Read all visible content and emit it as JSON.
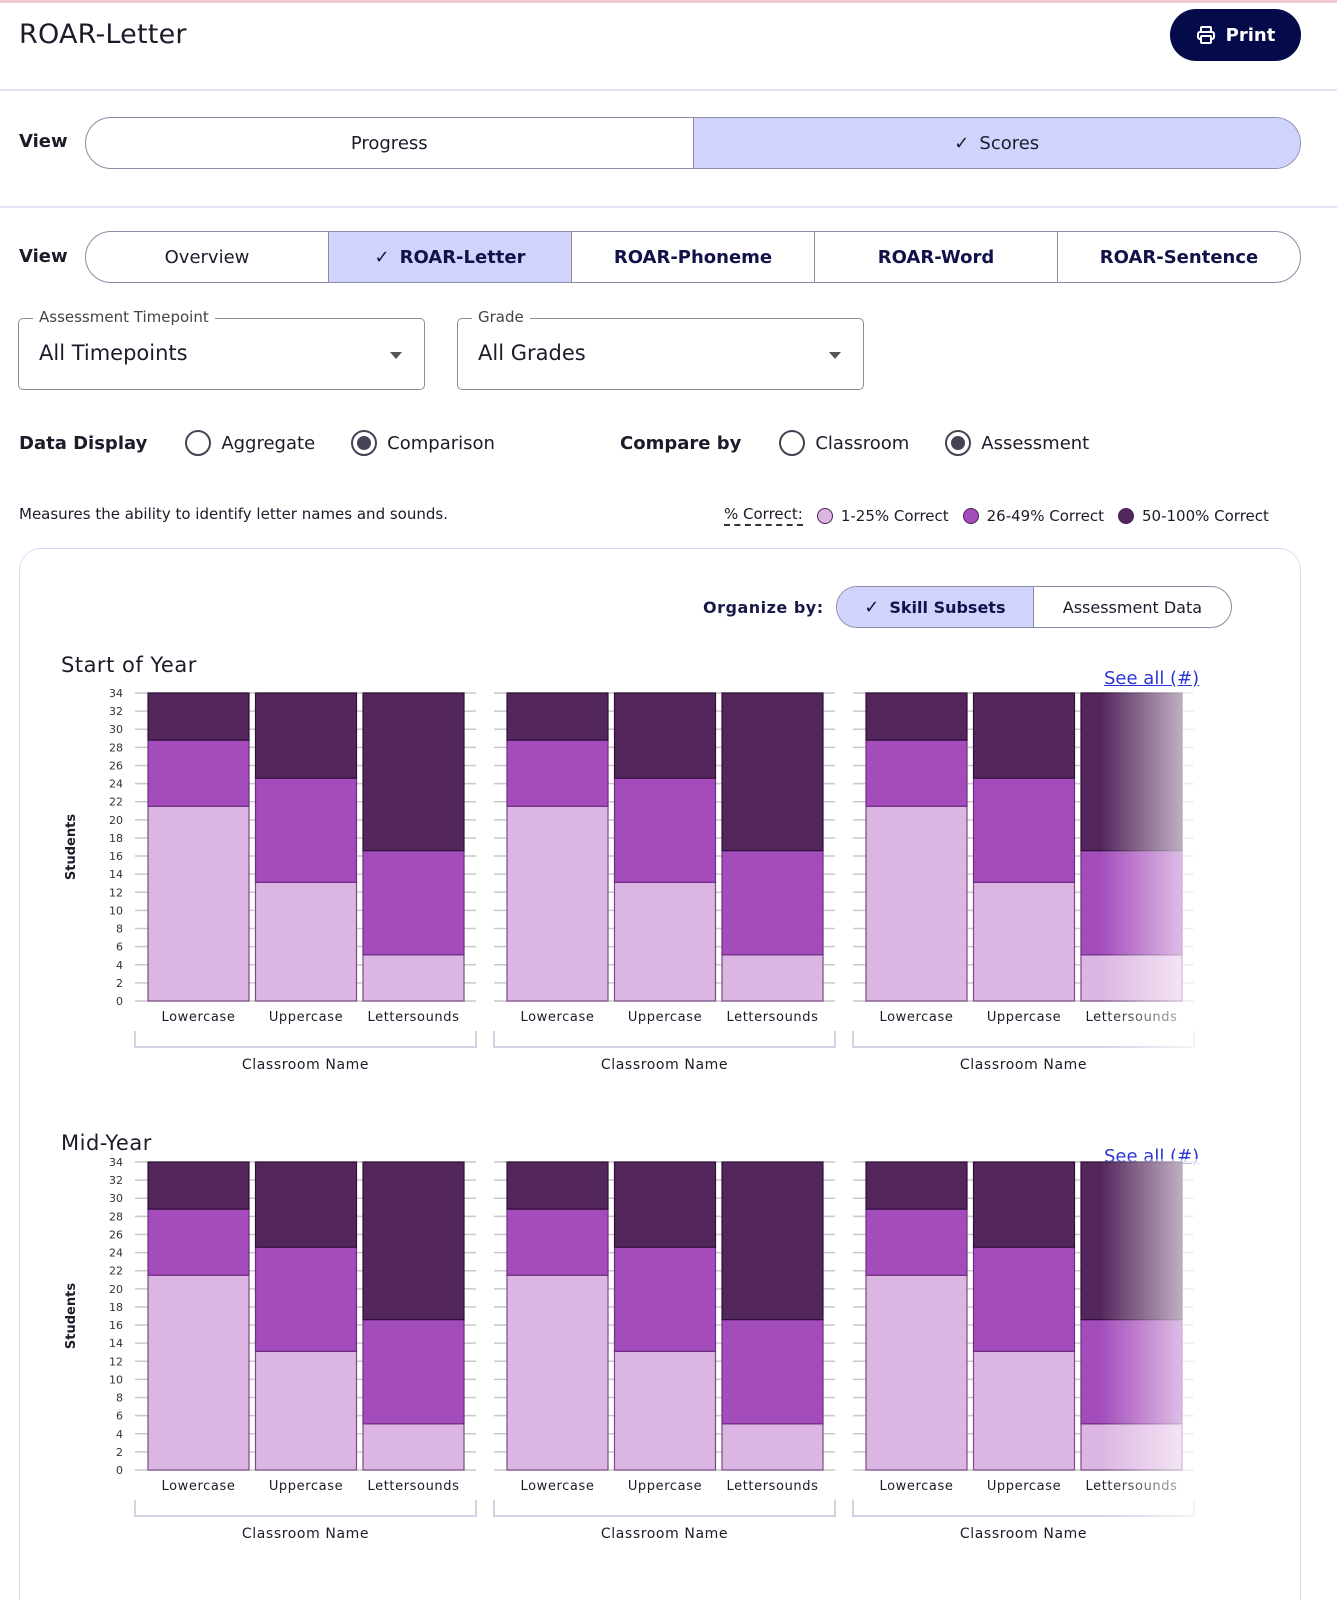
{
  "header": {
    "title": "ROAR-Letter",
    "print_label": "Print"
  },
  "view_toggle": {
    "label": "View",
    "options": [
      {
        "label": "Progress",
        "active": false
      },
      {
        "label": "Scores",
        "active": true
      }
    ]
  },
  "assessment_tabs": {
    "label": "View",
    "options": [
      {
        "label": "Overview",
        "active": false
      },
      {
        "label": "ROAR-Letter",
        "active": true
      },
      {
        "label": "ROAR-Phoneme",
        "active": false
      },
      {
        "label": "ROAR-Word",
        "active": false
      },
      {
        "label": "ROAR-Sentence",
        "active": false
      }
    ]
  },
  "filters": {
    "timepoint": {
      "label": "Assessment Timepoint",
      "value": "All Timepoints"
    },
    "grade": {
      "label": "Grade",
      "value": "All Grades"
    }
  },
  "data_display": {
    "label": "Data Display",
    "options": [
      {
        "label": "Aggregate",
        "selected": false
      },
      {
        "label": "Comparison",
        "selected": true
      }
    ]
  },
  "compare_by": {
    "label": "Compare by",
    "options": [
      {
        "label": "Classroom",
        "selected": false
      },
      {
        "label": "Assessment",
        "selected": true
      }
    ]
  },
  "description": "Measures the ability to identify letter names and sounds.",
  "legend": {
    "title": "% Correct:",
    "items": [
      {
        "label": "1-25% Correct",
        "color": "#dcb6e2"
      },
      {
        "label": "26-49% Correct",
        "color": "#a44cbb"
      },
      {
        "label": "50-100% Correct",
        "color": "#53265c"
      }
    ]
  },
  "organize_by": {
    "label": "Organize by:",
    "options": [
      {
        "label": "Skill Subsets",
        "active": true
      },
      {
        "label": "Assessment Data",
        "active": false
      }
    ]
  },
  "colors": {
    "low": "#dcb6e2",
    "mid": "#a44cbb",
    "high": "#53265c",
    "accent": "#d0d3fb",
    "primary": "#050a4a",
    "link": "#2b35d6"
  },
  "chart_data": [
    {
      "type": "bar",
      "stacked": true,
      "title": "Start of Year",
      "see_all_label": "See all (#)",
      "ylabel": "Students",
      "ylim": [
        0,
        34
      ],
      "yticks": [
        0,
        2,
        4,
        6,
        8,
        10,
        12,
        14,
        16,
        18,
        20,
        22,
        24,
        26,
        28,
        30,
        32,
        34
      ],
      "grid": true,
      "groups": [
        {
          "xlabel": "Classroom Name",
          "categories": [
            "Lowercase",
            "Uppercase",
            "Lettersounds"
          ],
          "series": [
            {
              "name": "1-25% Correct",
              "values": [
                21.5,
                13.1,
                5.1
              ]
            },
            {
              "name": "26-49% Correct",
              "values": [
                7.3,
                11.5,
                11.5
              ]
            },
            {
              "name": "50-100% Correct",
              "values": [
                5.2,
                9.4,
                17.4
              ]
            }
          ]
        },
        {
          "xlabel": "Classroom Name",
          "categories": [
            "Lowercase",
            "Uppercase",
            "Lettersounds"
          ],
          "series": [
            {
              "name": "1-25% Correct",
              "values": [
                21.5,
                13.1,
                5.1
              ]
            },
            {
              "name": "26-49% Correct",
              "values": [
                7.3,
                11.5,
                11.5
              ]
            },
            {
              "name": "50-100% Correct",
              "values": [
                5.2,
                9.4,
                17.4
              ]
            }
          ]
        },
        {
          "xlabel": "Classroom Name",
          "categories": [
            "Lowercase",
            "Uppercase",
            "Lettersounds"
          ],
          "series": [
            {
              "name": "1-25% Correct",
              "values": [
                21.5,
                13.1,
                5.1
              ]
            },
            {
              "name": "26-49% Correct",
              "values": [
                7.3,
                11.5,
                11.5
              ]
            },
            {
              "name": "50-100% Correct",
              "values": [
                5.2,
                9.4,
                17.4
              ]
            }
          ]
        }
      ]
    },
    {
      "type": "bar",
      "stacked": true,
      "title": "Mid-Year",
      "see_all_label": "See all (#)",
      "ylabel": "Students",
      "ylim": [
        0,
        34
      ],
      "yticks": [
        0,
        2,
        4,
        6,
        8,
        10,
        12,
        14,
        16,
        18,
        20,
        22,
        24,
        26,
        28,
        30,
        32,
        34
      ],
      "grid": true,
      "groups": [
        {
          "xlabel": "Classroom Name",
          "categories": [
            "Lowercase",
            "Uppercase",
            "Lettersounds"
          ],
          "series": [
            {
              "name": "1-25% Correct",
              "values": [
                21.5,
                13.1,
                5.1
              ]
            },
            {
              "name": "26-49% Correct",
              "values": [
                7.3,
                11.5,
                11.5
              ]
            },
            {
              "name": "50-100% Correct",
              "values": [
                5.2,
                9.4,
                17.4
              ]
            }
          ]
        },
        {
          "xlabel": "Classroom Name",
          "categories": [
            "Lowercase",
            "Uppercase",
            "Lettersounds"
          ],
          "series": [
            {
              "name": "1-25% Correct",
              "values": [
                21.5,
                13.1,
                5.1
              ]
            },
            {
              "name": "26-49% Correct",
              "values": [
                7.3,
                11.5,
                11.5
              ]
            },
            {
              "name": "50-100% Correct",
              "values": [
                5.2,
                9.4,
                17.4
              ]
            }
          ]
        },
        {
          "xlabel": "Classroom Name",
          "categories": [
            "Lowercase",
            "Uppercase",
            "Lettersounds"
          ],
          "series": [
            {
              "name": "1-25% Correct",
              "values": [
                21.5,
                13.1,
                5.1
              ]
            },
            {
              "name": "26-49% Correct",
              "values": [
                7.3,
                11.5,
                11.5
              ]
            },
            {
              "name": "50-100% Correct",
              "values": [
                5.2,
                9.4,
                17.4
              ]
            }
          ]
        }
      ]
    }
  ]
}
